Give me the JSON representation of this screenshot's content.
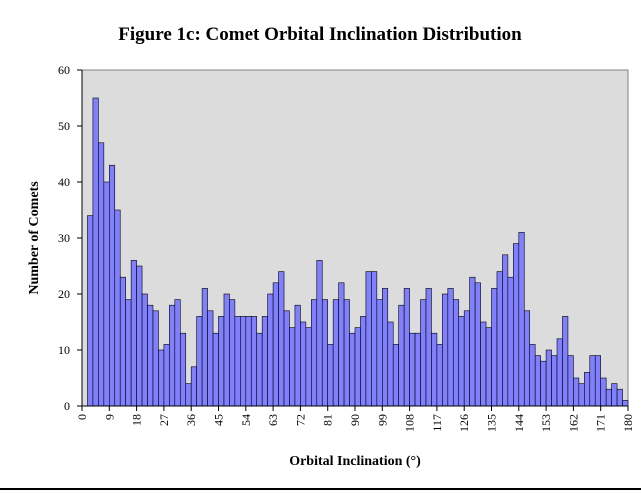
{
  "chart_data": {
    "type": "histogram",
    "title": "Figure 1c:  Comet Orbital Inclination Distribution",
    "x_label": "Orbital Inclination (°)",
    "y_label": "Number of Comets",
    "color": "#8080ff",
    "bins": [
      0,
      1.8,
      3.6,
      5.4,
      7.2,
      9,
      10.8,
      12.6,
      14.4,
      16.2,
      18,
      19.8,
      21.6,
      23.4,
      25.2,
      27,
      28.8,
      30.6,
      32.4,
      34.2,
      36,
      37.8,
      39.6,
      41.4,
      43.2,
      45,
      46.8,
      48.6,
      50.4,
      52.2,
      54,
      55.8,
      57.6,
      59.4,
      61.2,
      63,
      64.8,
      66.6,
      68.4,
      70.2,
      72,
      73.8,
      75.6,
      77.4,
      79.2,
      81,
      82.8,
      84.6,
      86.4,
      88.2,
      90,
      91.8,
      93.6,
      95.4,
      97.2,
      99,
      100.8,
      102.6,
      104.4,
      106.2,
      108,
      109.8,
      111.6,
      113.4,
      115.2,
      117,
      118.8,
      120.6,
      122.4,
      124.2,
      126,
      127.8,
      129.6,
      131.4,
      133.2,
      135,
      136.8,
      138.6,
      140.4,
      142.2,
      144,
      145.8,
      147.6,
      149.4,
      151.2,
      153,
      154.8,
      156.6,
      158.4,
      160.2,
      162,
      163.8,
      165.6,
      167.4,
      169.2,
      171,
      172.8,
      174.6,
      176.4,
      178.2,
      180
    ],
    "values": [
      0,
      34,
      55,
      47,
      40,
      43,
      35,
      23,
      19,
      26,
      25,
      20,
      18,
      17,
      10,
      11,
      18,
      19,
      13,
      4,
      7,
      16,
      21,
      17,
      13,
      16,
      20,
      19,
      16,
      16,
      16,
      16,
      13,
      16,
      20,
      22,
      24,
      17,
      14,
      18,
      15,
      14,
      19,
      26,
      19,
      11,
      19,
      22,
      19,
      13,
      14,
      16,
      24,
      24,
      19,
      21,
      15,
      11,
      18,
      21,
      13,
      13,
      19,
      21,
      13,
      11,
      20,
      21,
      19,
      16,
      17,
      23,
      22,
      15,
      14,
      21,
      24,
      27,
      23,
      29,
      31,
      17,
      11,
      9,
      8,
      10,
      9,
      12,
      16,
      9,
      5,
      4,
      6,
      9,
      9,
      5,
      3,
      4,
      3,
      1
    ],
    "xlim": [
      0,
      180
    ],
    "xticks": [
      0,
      9,
      18,
      27,
      36,
      45,
      54,
      63,
      72,
      81,
      90,
      99,
      108,
      117,
      126,
      135,
      144,
      153,
      162,
      171,
      180
    ],
    "ylim": [
      0,
      60
    ],
    "yticks": [
      0,
      10,
      20,
      30,
      40,
      50,
      60
    ]
  }
}
